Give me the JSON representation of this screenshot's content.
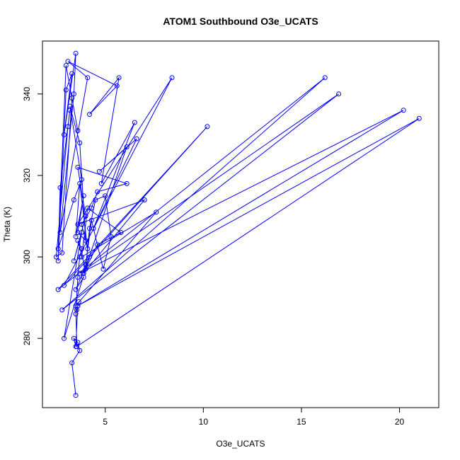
{
  "chart_data": {
    "type": "line",
    "title": "ATOM1 Southbound O3e_UCATS",
    "xlabel": "O3e_UCATS",
    "ylabel": "Theta (K)",
    "xlim": [
      1.8,
      22.0
    ],
    "ylim": [
      263,
      353
    ],
    "xticks": [
      5,
      10,
      15,
      20
    ],
    "yticks": [
      280,
      300,
      320,
      340
    ],
    "grid": false,
    "legend": "none",
    "color": "#0000ff",
    "series": [
      {
        "x": [
          3.5,
          3.3,
          3.7,
          3.6,
          3.4,
          3.5,
          3.6,
          3.55,
          3.65,
          3.5,
          3.6,
          3.7,
          3.8,
          3.6,
          4.0,
          4.2,
          4.5,
          5.0,
          5.3,
          4.9,
          4.3,
          4.0,
          3.9,
          4.6,
          5.8,
          4.1,
          3.8,
          7.6,
          3.5,
          3.55,
          21.0,
          3.6,
          20.2,
          3.7,
          16.9,
          2.8,
          16.2,
          2.6,
          10.2,
          2.9,
          8.4,
          3.6,
          7.0,
          3.9,
          6.1,
          4.7,
          6.6,
          4.4,
          6.5,
          4.8,
          5.7,
          4.2,
          5.6,
          3.1,
          4.1,
          2.7,
          3.4,
          3.5,
          2.9,
          3.3,
          3.0,
          2.6,
          2.7,
          3.2,
          3.1,
          2.5,
          2.8,
          3.3,
          3.6,
          3.0,
          2.6,
          3.4,
          3.8,
          3.2,
          3.7,
          4.0,
          3.6,
          3.9,
          3.5,
          3.7,
          4.1,
          3.8,
          4.3,
          4.6,
          6.1,
          3.6,
          4.0,
          3.4,
          3.8,
          2.9,
          4.2,
          3.5,
          3.9
        ],
        "y": [
          266,
          274,
          277,
          279,
          280,
          278,
          288,
          287,
          289,
          286,
          295,
          300,
          302,
          304,
          297,
          307,
          314,
          315,
          305,
          297,
          309,
          298,
          296,
          303,
          306,
          312,
          300,
          311,
          288,
          278,
          334,
          288,
          336,
          296,
          340,
          287,
          344,
          292,
          332,
          293,
          344,
          308,
          314,
          296,
          327,
          321,
          329,
          307,
          333,
          318,
          344,
          335,
          342,
          348,
          344,
          306,
          340,
          350,
          330,
          345,
          341,
          299,
          317,
          336,
          332,
          300,
          301,
          339,
          331,
          347,
          302,
          314,
          319,
          337,
          328,
          304,
          306,
          315,
          305,
          318,
          302,
          308,
          312,
          316,
          318,
          322,
          310,
          299,
          306,
          280,
          300,
          292,
          295
        ]
      }
    ]
  }
}
